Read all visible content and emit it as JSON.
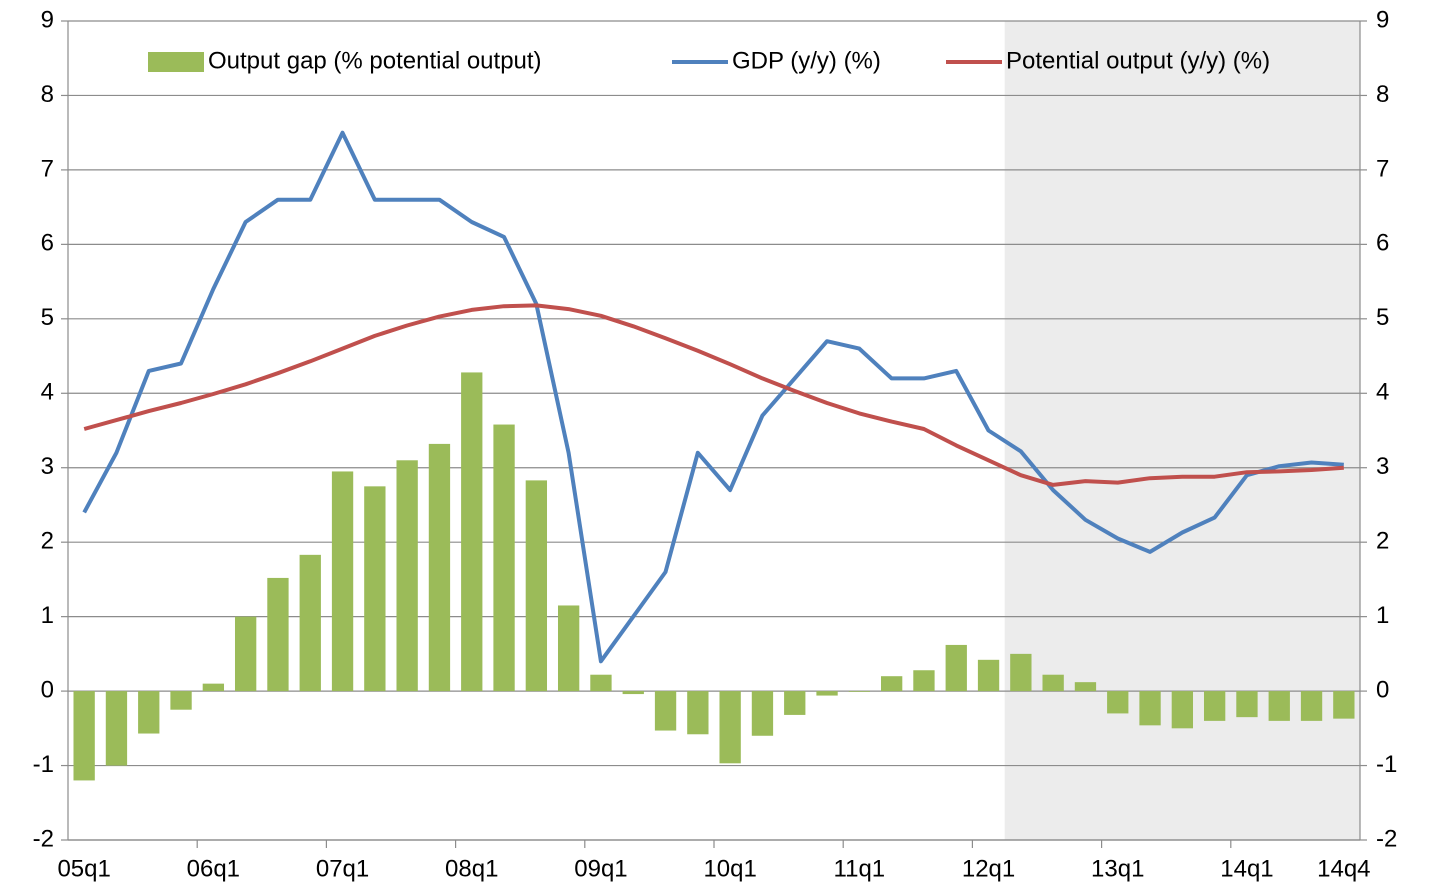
{
  "chart_data": {
    "type": "bar_line",
    "categories": [
      "05q1",
      null,
      null,
      null,
      "06q1",
      null,
      null,
      null,
      "07q1",
      null,
      null,
      null,
      "08q1",
      null,
      null,
      null,
      "09q1",
      null,
      null,
      null,
      "10q1",
      null,
      null,
      null,
      "11q1",
      null,
      null,
      null,
      "12q1",
      null,
      null,
      null,
      "13q1",
      null,
      null,
      null,
      "14q1",
      null,
      null,
      "14q4"
    ],
    "series": [
      {
        "name": "Output gap (% potential output)",
        "type": "bar",
        "color": "#9bbb59",
        "values": [
          -1.2,
          -1.0,
          -0.57,
          -0.25,
          0.1,
          1.0,
          1.52,
          1.83,
          2.95,
          2.75,
          3.1,
          3.32,
          4.28,
          3.58,
          2.83,
          1.15,
          0.22,
          -0.04,
          -0.53,
          -0.58,
          -0.97,
          -0.6,
          -0.32,
          -0.06,
          -0.01,
          0.2,
          0.28,
          0.62,
          0.42,
          0.5,
          0.22,
          0.12,
          -0.3,
          -0.46,
          -0.5,
          -0.4,
          -0.35,
          -0.4,
          -0.4,
          -0.37
        ]
      },
      {
        "name": "GDP (y/y) (%)",
        "type": "line",
        "color": "#4f81bd",
        "values": [
          2.4,
          3.2,
          4.3,
          4.4,
          5.4,
          6.3,
          6.6,
          6.6,
          7.5,
          6.6,
          6.6,
          6.6,
          6.3,
          6.1,
          5.2,
          3.2,
          0.4,
          1.0,
          1.6,
          3.2,
          2.7,
          3.7,
          4.2,
          4.7,
          4.6,
          4.2,
          4.2,
          4.3,
          3.5,
          3.22,
          2.7,
          2.3,
          2.05,
          1.87,
          2.13,
          2.33,
          2.9,
          3.02,
          3.07,
          3.04
        ]
      },
      {
        "name": "Potential output (y/y) (%)",
        "type": "line",
        "color": "#c0504d",
        "values": [
          3.52,
          3.64,
          3.76,
          3.87,
          3.99,
          4.12,
          4.27,
          4.43,
          4.6,
          4.77,
          4.91,
          5.03,
          5.12,
          5.17,
          5.18,
          5.13,
          5.04,
          4.9,
          4.74,
          4.57,
          4.39,
          4.2,
          4.03,
          3.87,
          3.73,
          3.62,
          3.52,
          3.3,
          3.1,
          2.9,
          2.77,
          2.82,
          2.8,
          2.86,
          2.88,
          2.88,
          2.94,
          2.95,
          2.97,
          3.0
        ]
      }
    ],
    "ylim": [
      -2,
      9
    ],
    "yticks": [
      -2,
      -1,
      0,
      1,
      2,
      3,
      4,
      5,
      6,
      7,
      8,
      9
    ],
    "y2lim": [
      -2,
      9
    ],
    "y2ticks": [
      -2,
      -1,
      0,
      1,
      2,
      3,
      4,
      5,
      6,
      7,
      8,
      9
    ],
    "grid": true,
    "legend": "top"
  }
}
